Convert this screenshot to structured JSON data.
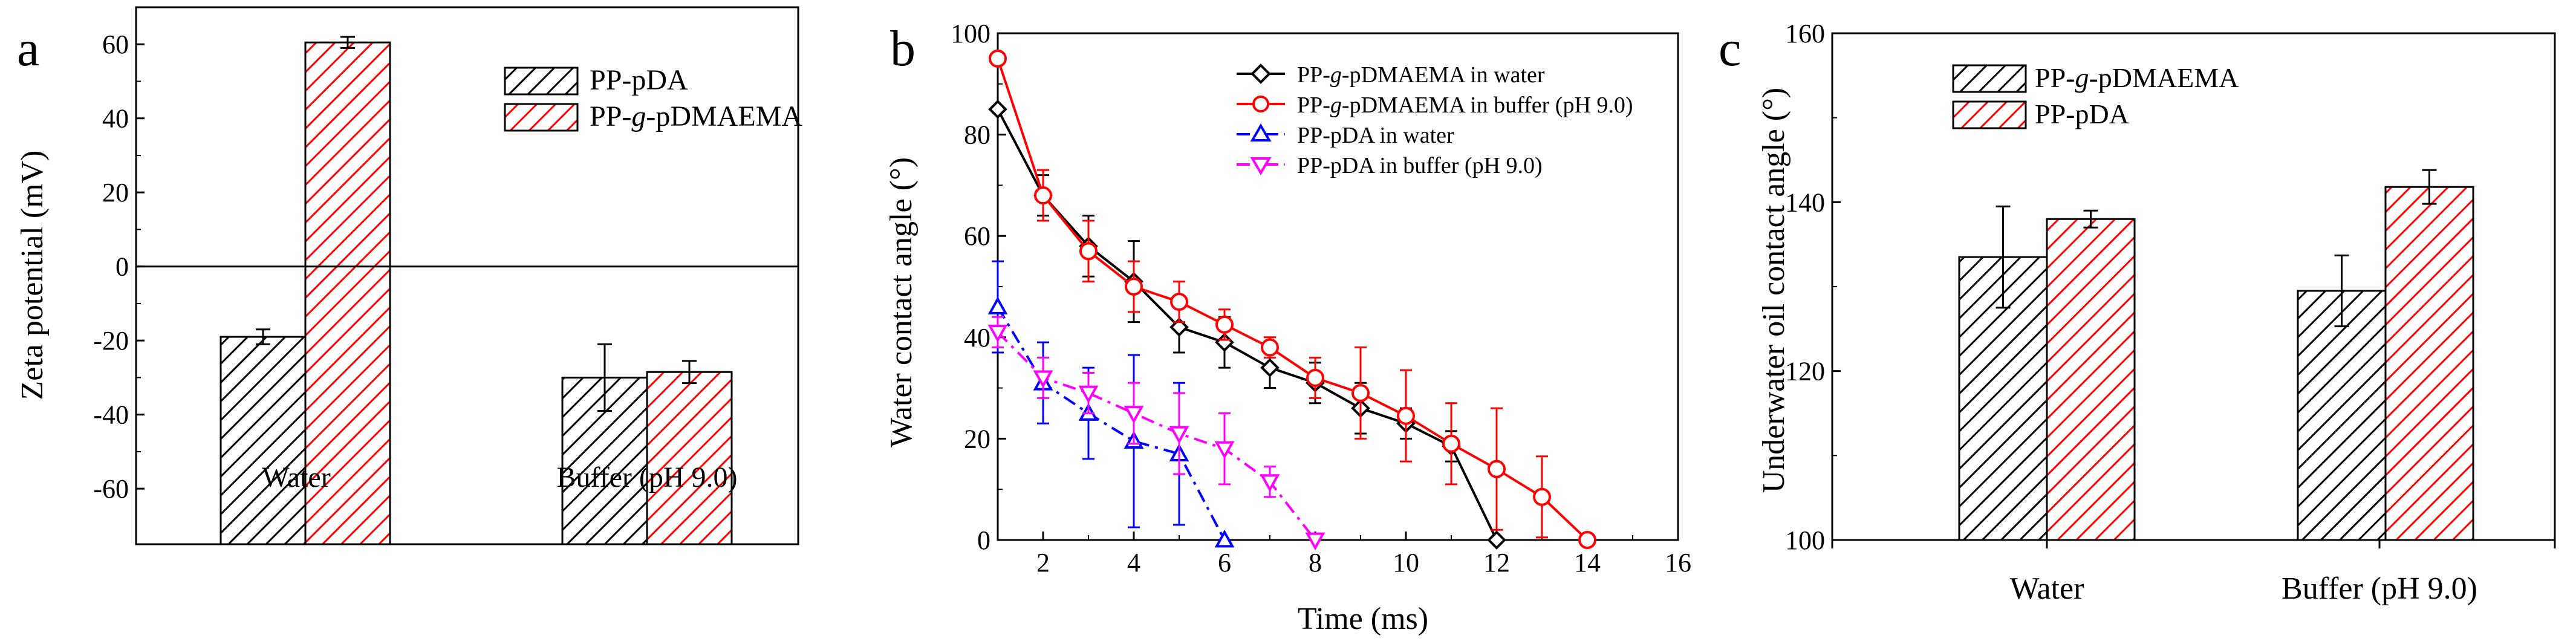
{
  "chart_data": [
    {
      "panel_label": "a",
      "type": "bar",
      "categories": [
        "Water",
        "Buffer (pH 9.0)"
      ],
      "series": [
        {
          "name": "PP-pDA",
          "values": [
            -19,
            -30
          ],
          "errors": [
            2,
            9
          ],
          "color": "#000000",
          "hatch": "black"
        },
        {
          "name": "PP-g-pDMAEMA",
          "values": [
            60.5,
            -28.5
          ],
          "errors": [
            1.5,
            3
          ],
          "color": "#ff0000",
          "hatch": "red"
        }
      ],
      "legend": [
        {
          "pre": "PP-pDA",
          "ital": "",
          "post": ""
        },
        {
          "pre": "PP-",
          "ital": "g",
          "post": "-pDMAEMA"
        }
      ],
      "ylabel": "Zeta potential (mV)",
      "ylim": [
        -75,
        70
      ],
      "yticks": [
        -60,
        -40,
        -20,
        0,
        20,
        40,
        60
      ],
      "ytick_labels": [
        "-60",
        "-40",
        "-20",
        "0",
        "20",
        "40",
        "60"
      ],
      "legend_position": "top-right",
      "grid": false
    },
    {
      "panel_label": "b",
      "type": "line",
      "xlabel": "Time (ms)",
      "ylabel": "Water contact angle (°)",
      "xlim": [
        1,
        16
      ],
      "ylim": [
        0,
        100
      ],
      "xticks": [
        2,
        4,
        6,
        8,
        10,
        12,
        14,
        16
      ],
      "xtick_labels": [
        "2",
        "4",
        "6",
        "8",
        "10",
        "12",
        "14",
        "16"
      ],
      "yticks": [
        0,
        20,
        40,
        60,
        80,
        100
      ],
      "ytick_labels": [
        "0",
        "20",
        "40",
        "60",
        "80",
        "100"
      ],
      "legend": [
        {
          "pre": "PP-",
          "ital": "g",
          "post": "-pDMAEMA in water"
        },
        {
          "pre": "PP-",
          "ital": "g",
          "post": "-pDMAEMA in buffer (pH 9.0)"
        },
        {
          "pre": "PP-pDA in water",
          "ital": "",
          "post": ""
        },
        {
          "pre": "PP-pDA in buffer (pH 9.0)",
          "ital": "",
          "post": ""
        }
      ],
      "series": [
        {
          "name": "PP-g-pDMAEMA in water",
          "color": "#000000",
          "marker": "diamond",
          "dash": "",
          "x": [
            1,
            2,
            3,
            4,
            5,
            6,
            7,
            8,
            9,
            10,
            11,
            12
          ],
          "y": [
            85,
            68,
            58,
            51,
            42,
            39,
            34,
            31,
            26,
            23,
            18.5,
            0
          ],
          "err": [
            0,
            4,
            6,
            8,
            5,
            5,
            4,
            4,
            5,
            3,
            3,
            0
          ]
        },
        {
          "name": "PP-g-pDMAEMA in buffer (pH 9.0)",
          "color": "#ff0000",
          "marker": "circle",
          "dash": "",
          "x": [
            1,
            2,
            3,
            4,
            5,
            6,
            7,
            8,
            9,
            10,
            11,
            12,
            13,
            14
          ],
          "y": [
            95,
            68,
            57,
            50,
            47,
            42.5,
            38,
            32,
            29,
            24.5,
            19,
            14,
            8.5,
            0
          ],
          "err": [
            0,
            5,
            6,
            5,
            4,
            3,
            2,
            4,
            9,
            9,
            8,
            12,
            8,
            0
          ]
        },
        {
          "name": "PP-pDA in water",
          "color": "#0000ff",
          "marker": "triangle-up",
          "dash": "22,10,5,10",
          "x": [
            1,
            2,
            3,
            4,
            5,
            6
          ],
          "y": [
            46,
            31,
            25,
            19.5,
            17,
            0
          ],
          "err": [
            9,
            8,
            9,
            17,
            14,
            0
          ]
        },
        {
          "name": "PP-pDA in buffer (pH 9.0)",
          "color": "#ff00ff",
          "marker": "triangle-down",
          "dash": "22,10,5,10",
          "x": [
            1,
            2,
            3,
            4,
            5,
            6,
            7,
            8
          ],
          "y": [
            41,
            32,
            29,
            25,
            21,
            18,
            11.5,
            0
          ],
          "err": [
            3,
            4,
            4,
            6,
            8,
            7,
            3,
            0
          ]
        }
      ],
      "legend_position": "top-right",
      "grid": false
    },
    {
      "panel_label": "c",
      "type": "bar",
      "categories": [
        "Water",
        "Buffer (pH 9.0)"
      ],
      "series": [
        {
          "name": "PP-g-pDMAEMA",
          "values": [
            133.5,
            129.5
          ],
          "errors": [
            6,
            4.2
          ],
          "color": "#000000",
          "hatch": "black"
        },
        {
          "name": "PP-pDA",
          "values": [
            138,
            141.8
          ],
          "errors": [
            1,
            2
          ],
          "color": "#ff0000",
          "hatch": "red"
        }
      ],
      "legend": [
        {
          "pre": "PP-",
          "ital": "g",
          "post": "-pDMAEMA"
        },
        {
          "pre": "PP-pDA",
          "ital": "",
          "post": ""
        }
      ],
      "ylabel": "Underwater oil contact angle (°)",
      "ylim": [
        100,
        160
      ],
      "yticks": [
        100,
        120,
        140,
        160
      ],
      "ytick_labels": [
        "100",
        "120",
        "140",
        "160"
      ],
      "legend_position": "top-left",
      "grid": false
    }
  ]
}
